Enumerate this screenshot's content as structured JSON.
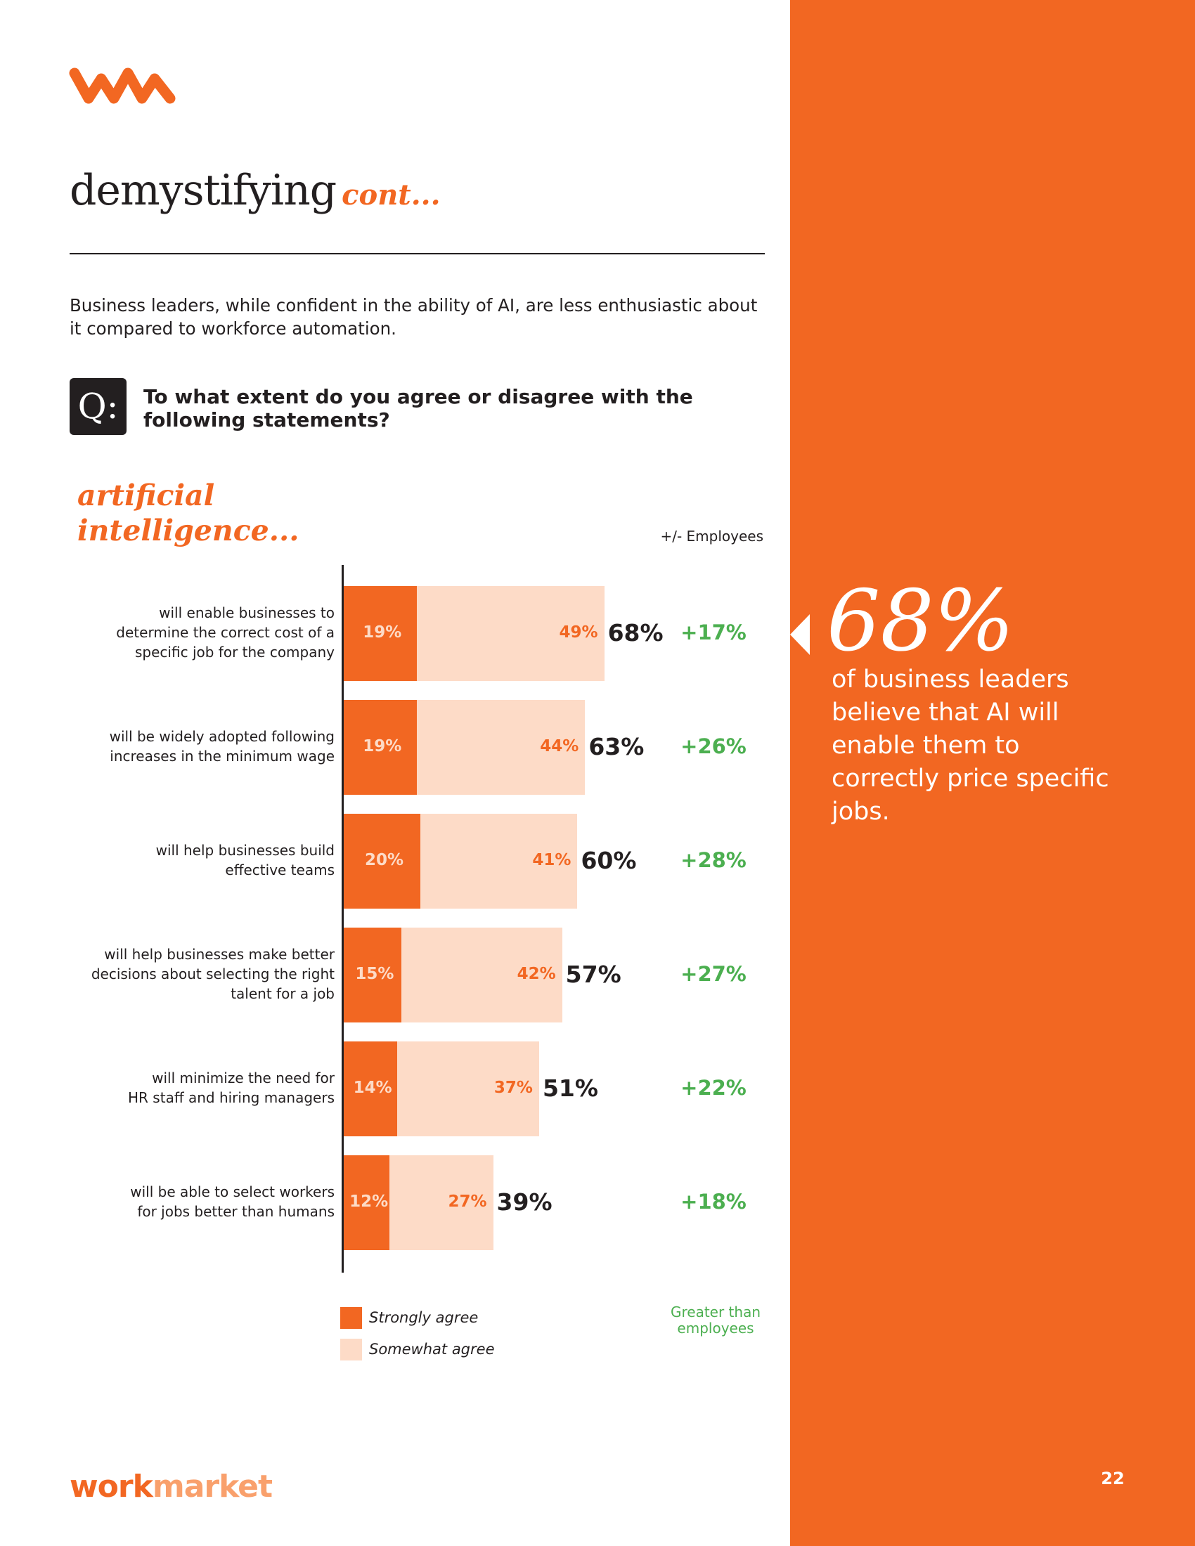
{
  "header": {
    "title": "demystifying",
    "title_suffix": "cont..."
  },
  "intro_text": "Business leaders, while confident in the ability of AI, are less enthusiastic about it compared to workforce automation.",
  "question": {
    "badge": "Q:",
    "text": "To what extent do you agree or disagree with the following statements?"
  },
  "section_title_line1": "artificial",
  "section_title_line2": "intelligence...",
  "colors": {
    "accent": "#f26722",
    "light": "#fddbc7",
    "positive": "#4caf50",
    "dark": "#231f20"
  },
  "chart_data": {
    "type": "bar",
    "orientation": "horizontal",
    "stacked": true,
    "title": "",
    "difference_header": "+/- Employees",
    "categories": [
      "will enable businesses to determine the correct cost of a specific job for the company",
      "will be widely adopted following increases in the minimum wage",
      "will help businesses build effective teams",
      "will help businesses make better decisions about selecting the right talent for a job",
      "will minimize the need for HR staff and hiring managers",
      "will be able to select workers for jobs better than humans"
    ],
    "series": [
      {
        "name": "Strongly agree",
        "values": [
          19,
          19,
          20,
          15,
          14,
          12
        ]
      },
      {
        "name": "Somewhat agree",
        "values": [
          49,
          44,
          41,
          42,
          37,
          27
        ]
      }
    ],
    "totals": [
      68,
      63,
      60,
      57,
      51,
      39
    ],
    "differences": [
      "+17%",
      "+26%",
      "+28%",
      "+27%",
      "+22%",
      "+18%"
    ],
    "difference_legend": "Greater than employees",
    "value_unit": "%",
    "xlim": [
      0,
      100
    ],
    "grid": false
  },
  "rows": [
    {
      "label_lines": [
        "will enable businesses to",
        "determine the correct cost of a",
        "specific job for the company"
      ],
      "strong": "19%",
      "some": "49%",
      "total": "68%",
      "diff": "+17%"
    },
    {
      "label_lines": [
        "will be widely adopted following",
        "increases in the minimum wage"
      ],
      "strong": "19%",
      "some": "44%",
      "total": "63%",
      "diff": "+26%"
    },
    {
      "label_lines": [
        "will help businesses build",
        "effective teams"
      ],
      "strong": "20%",
      "some": "41%",
      "total": "60%",
      "diff": "+28%"
    },
    {
      "label_lines": [
        "will help businesses make better",
        "decisions about selecting the right",
        "talent for a job"
      ],
      "strong": "15%",
      "some": "42%",
      "total": "57%",
      "diff": "+27%"
    },
    {
      "label_lines": [
        "will minimize the need for",
        "HR staff and hiring managers"
      ],
      "strong": "14%",
      "some": "37%",
      "total": "51%",
      "diff": "+22%"
    },
    {
      "label_lines": [
        "will be able to select workers",
        "for jobs better than humans"
      ],
      "strong": "12%",
      "some": "27%",
      "total": "39%",
      "diff": "+18%"
    }
  ],
  "legend": {
    "strongly": "Strongly agree",
    "somewhat": "Somewhat agree",
    "greater_line1": "Greater than",
    "greater_line2": "employees"
  },
  "callout": {
    "number": "68%",
    "text": "of business leaders believe that AI will enable them to correctly price specific jobs."
  },
  "footer": {
    "brand_part1": "work",
    "brand_part2": "market",
    "page_number": "22"
  }
}
